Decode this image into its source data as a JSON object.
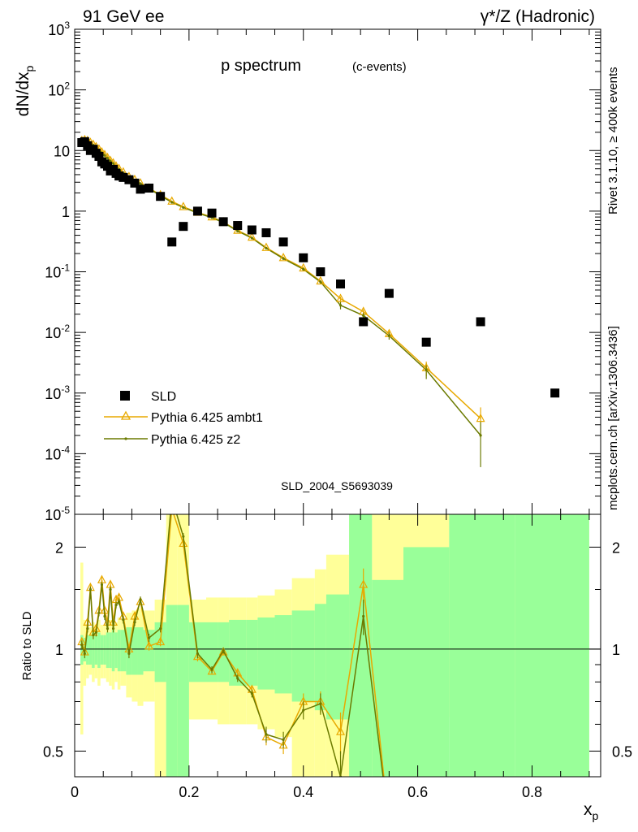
{
  "header": {
    "left": "91 GeV ee",
    "right": "γ*/Z (Hadronic)"
  },
  "side": {
    "rivet": "Rivet 3.1.10, ≥ 400k events",
    "mcplots": "mcplots.cern.ch [arXiv:1306.3436]"
  },
  "chart_data": [
    {
      "type": "scatter",
      "title": "p spectrum",
      "subtitle": "(c-events)",
      "ylabel": "dN/dx_p",
      "watermark": "SLD_2004_S5693039",
      "y_scale": "log",
      "ylim": [
        1e-05,
        1000
      ],
      "xlim": [
        0,
        0.92
      ],
      "y_tick_labels": [
        "10^-5",
        "10^-4",
        "10^-3",
        "10^-2",
        "10^-1",
        "1",
        "10",
        "10^2",
        "10^3"
      ],
      "legend": {
        "position": "bottom-left",
        "entries": [
          "SLD",
          "Pythia 6.425 ambt1",
          "Pythia 6.425 z2"
        ]
      },
      "colors": {
        "data": "#000000",
        "ambt1": "#e8a900",
        "z2": "#6b7a00"
      },
      "series": [
        {
          "name": "SLD",
          "marker": "filled-square",
          "x": [
            0.0125,
            0.0175,
            0.0225,
            0.0275,
            0.0325,
            0.0375,
            0.0425,
            0.0475,
            0.0525,
            0.0575,
            0.0625,
            0.0675,
            0.0725,
            0.0775,
            0.085,
            0.095,
            0.105,
            0.115,
            0.13,
            0.15,
            0.17,
            0.19,
            0.215,
            0.24,
            0.26,
            0.285,
            0.31,
            0.335,
            0.365,
            0.4,
            0.43,
            0.465,
            0.505,
            0.55,
            0.615,
            0.71,
            0.84
          ],
          "y": [
            13.5,
            14.0,
            12.0,
            10.0,
            10.5,
            9.0,
            8.0,
            6.5,
            6.0,
            5.5,
            4.6,
            4.9,
            4.2,
            3.8,
            3.6,
            3.3,
            2.9,
            2.3,
            2.4,
            1.75,
            0.31,
            0.56,
            1.0,
            0.93,
            0.67,
            0.58,
            0.49,
            0.44,
            0.31,
            0.17,
            0.1,
            0.063,
            0.015,
            0.044,
            0.0069,
            0.015,
            0.001
          ]
        },
        {
          "name": "Pythia 6.425 ambt1",
          "marker": "open-triangle",
          "x": [
            0.0125,
            0.0175,
            0.0225,
            0.0275,
            0.0325,
            0.0375,
            0.0425,
            0.0475,
            0.0525,
            0.0575,
            0.0625,
            0.0675,
            0.0725,
            0.0775,
            0.085,
            0.095,
            0.105,
            0.115,
            0.13,
            0.15,
            0.17,
            0.19,
            0.215,
            0.24,
            0.26,
            0.285,
            0.31,
            0.335,
            0.365,
            0.4,
            0.43,
            0.465,
            0.505,
            0.55,
            0.615,
            0.71
          ],
          "y": [
            14.5,
            15.0,
            14.5,
            13.5,
            12.5,
            11.5,
            10.5,
            9.4,
            8.5,
            7.6,
            6.8,
            6.2,
            5.5,
            5.0,
            4.4,
            3.7,
            3.3,
            2.9,
            2.4,
            1.85,
            1.45,
            1.18,
            0.95,
            0.8,
            0.66,
            0.48,
            0.37,
            0.25,
            0.17,
            0.115,
            0.07,
            0.036,
            0.022,
            0.0095,
            0.0026,
            0.00038
          ],
          "y_err": [
            0,
            0,
            0,
            0,
            0,
            0,
            0,
            0,
            0,
            0,
            0,
            0,
            0,
            0,
            0,
            0,
            0,
            0,
            0,
            0,
            0,
            0,
            0,
            0,
            0,
            0,
            0.01,
            0.01,
            0.008,
            0.006,
            0.004,
            0.003,
            0.002,
            0.0012,
            0.0007,
            0.0002
          ]
        },
        {
          "name": "Pythia 6.425 z2",
          "marker": "small-dot",
          "x": [
            0.0125,
            0.0175,
            0.0225,
            0.0275,
            0.0325,
            0.0375,
            0.0425,
            0.0475,
            0.0525,
            0.0575,
            0.0625,
            0.0675,
            0.0725,
            0.0775,
            0.085,
            0.095,
            0.105,
            0.115,
            0.13,
            0.15,
            0.17,
            0.19,
            0.215,
            0.24,
            0.26,
            0.285,
            0.31,
            0.335,
            0.365,
            0.4,
            0.43,
            0.465,
            0.505,
            0.55,
            0.615,
            0.71
          ],
          "y": [
            14.0,
            14.8,
            14.2,
            13.2,
            12.3,
            11.2,
            10.2,
            9.2,
            8.3,
            7.5,
            6.7,
            6.1,
            5.4,
            4.9,
            4.3,
            3.6,
            3.2,
            2.85,
            2.35,
            1.8,
            1.4,
            1.15,
            0.93,
            0.78,
            0.65,
            0.47,
            0.36,
            0.245,
            0.165,
            0.11,
            0.068,
            0.028,
            0.019,
            0.0088,
            0.0024,
            0.0002
          ],
          "y_err": [
            0,
            0,
            0,
            0,
            0,
            0,
            0,
            0,
            0,
            0,
            0,
            0,
            0,
            0,
            0,
            0,
            0,
            0,
            0,
            0,
            0,
            0,
            0,
            0,
            0,
            0,
            0.01,
            0.01,
            0.008,
            0.006,
            0.004,
            0.004,
            0.002,
            0.0012,
            0.0007,
            0.00014
          ]
        }
      ]
    },
    {
      "type": "line",
      "ylabel": "Ratio to SLD",
      "xlabel": "x_p",
      "y_scale": "log",
      "ylim": [
        0.42,
        2.5
      ],
      "xlim": [
        0,
        0.92
      ],
      "x_tick_labels": [
        "0",
        "0.2",
        "0.4",
        "0.6",
        "0.8"
      ],
      "y_tick_labels": [
        "0.5",
        "1",
        "2"
      ],
      "reference_line": 1,
      "bands": {
        "bins": [
          [
            0.01,
            0.015
          ],
          [
            0.015,
            0.02
          ],
          [
            0.02,
            0.025
          ],
          [
            0.025,
            0.03
          ],
          [
            0.03,
            0.035
          ],
          [
            0.035,
            0.04
          ],
          [
            0.04,
            0.045
          ],
          [
            0.045,
            0.05
          ],
          [
            0.05,
            0.055
          ],
          [
            0.055,
            0.06
          ],
          [
            0.06,
            0.065
          ],
          [
            0.065,
            0.07
          ],
          [
            0.07,
            0.075
          ],
          [
            0.075,
            0.08
          ],
          [
            0.08,
            0.09
          ],
          [
            0.09,
            0.1
          ],
          [
            0.1,
            0.11
          ],
          [
            0.11,
            0.12
          ],
          [
            0.12,
            0.14
          ],
          [
            0.14,
            0.16
          ],
          [
            0.16,
            0.18
          ],
          [
            0.18,
            0.2
          ],
          [
            0.2,
            0.23
          ],
          [
            0.23,
            0.25
          ],
          [
            0.25,
            0.27
          ],
          [
            0.27,
            0.3
          ],
          [
            0.3,
            0.32
          ],
          [
            0.32,
            0.35
          ],
          [
            0.35,
            0.38
          ],
          [
            0.38,
            0.42
          ],
          [
            0.42,
            0.44
          ],
          [
            0.44,
            0.48
          ],
          [
            0.48,
            0.52
          ],
          [
            0.52,
            0.575
          ],
          [
            0.575,
            0.655
          ],
          [
            0.655,
            0.77
          ],
          [
            0.77,
            0.9
          ]
        ],
        "inner_low": [
          0.9,
          0.92,
          0.9,
          0.9,
          0.88,
          0.9,
          0.88,
          0.9,
          0.9,
          0.88,
          0.88,
          0.86,
          0.88,
          0.86,
          0.86,
          0.84,
          0.84,
          0.84,
          0.86,
          0.8,
          0.42,
          0.42,
          0.8,
          0.8,
          0.8,
          0.78,
          0.78,
          0.76,
          0.74,
          0.7,
          0.66,
          0.62,
          0.42,
          0.42,
          0.42,
          0.42,
          0.42
        ],
        "inner_high": [
          1.1,
          1.08,
          1.1,
          1.1,
          1.12,
          1.1,
          1.12,
          1.1,
          1.1,
          1.12,
          1.12,
          1.14,
          1.12,
          1.14,
          1.14,
          1.16,
          1.16,
          1.16,
          1.14,
          1.2,
          1.35,
          1.35,
          1.2,
          1.2,
          1.2,
          1.22,
          1.22,
          1.24,
          1.26,
          1.3,
          1.36,
          1.45,
          2.5,
          1.6,
          2.0,
          2.5,
          2.5
        ],
        "outer_low": [
          0.56,
          0.78,
          0.82,
          0.84,
          0.8,
          0.82,
          0.78,
          0.82,
          0.82,
          0.8,
          0.78,
          0.76,
          0.8,
          0.76,
          0.78,
          0.72,
          0.7,
          0.68,
          0.7,
          0.42,
          0.42,
          0.42,
          0.62,
          0.62,
          0.6,
          0.6,
          0.6,
          0.58,
          0.55,
          0.42,
          0.42,
          0.42,
          0.42,
          0.42,
          0.63,
          0.7,
          0.42
        ],
        "outer_high": [
          1.8,
          1.22,
          1.18,
          1.16,
          1.2,
          1.18,
          1.22,
          1.18,
          1.18,
          1.2,
          1.22,
          1.24,
          1.2,
          1.24,
          1.22,
          1.28,
          1.3,
          1.32,
          1.3,
          1.4,
          2.5,
          2.5,
          1.4,
          1.42,
          1.42,
          1.42,
          1.42,
          1.44,
          1.5,
          1.62,
          1.72,
          1.9,
          2.5,
          2.5,
          2.5,
          1.72,
          2.5
        ]
      },
      "colors": {
        "inner": "#99ff99",
        "outer": "#ffff99"
      },
      "series": [
        {
          "name": "Pythia 6.425 ambt1",
          "x": [
            0.0125,
            0.0175,
            0.0225,
            0.0275,
            0.0325,
            0.0375,
            0.0425,
            0.0475,
            0.0525,
            0.0575,
            0.0625,
            0.0675,
            0.0725,
            0.0775,
            0.085,
            0.095,
            0.105,
            0.115,
            0.13,
            0.15,
            0.17,
            0.19,
            0.215,
            0.24,
            0.26,
            0.285,
            0.31,
            0.335,
            0.365,
            0.4,
            0.43,
            0.465,
            0.505,
            0.55
          ],
          "y": [
            1.05,
            0.98,
            1.2,
            1.52,
            1.12,
            1.15,
            1.3,
            1.6,
            1.3,
            1.2,
            1.55,
            1.2,
            1.4,
            1.42,
            1.25,
            1.0,
            1.25,
            1.38,
            1.02,
            1.05,
            2.6,
            2.05,
            0.95,
            0.86,
            0.98,
            0.85,
            0.76,
            0.55,
            0.52,
            0.7,
            0.7,
            0.57,
            1.55,
            0.3
          ],
          "y_err": [
            0.03,
            0.03,
            0.03,
            0.03,
            0.03,
            0.03,
            0.03,
            0.03,
            0.03,
            0.03,
            0.03,
            0.03,
            0.03,
            0.03,
            0.03,
            0.03,
            0.03,
            0.03,
            0.03,
            0.03,
            0.05,
            0.05,
            0.03,
            0.02,
            0.02,
            0.02,
            0.02,
            0.03,
            0.03,
            0.04,
            0.05,
            0.08,
            0.18,
            0.0
          ]
        },
        {
          "name": "Pythia 6.425 z2",
          "x": [
            0.0125,
            0.0175,
            0.0225,
            0.0275,
            0.0325,
            0.0375,
            0.0425,
            0.0475,
            0.0525,
            0.0575,
            0.0625,
            0.0675,
            0.0725,
            0.0775,
            0.085,
            0.095,
            0.105,
            0.115,
            0.13,
            0.15,
            0.17,
            0.19,
            0.215,
            0.24,
            0.26,
            0.285,
            0.31,
            0.335,
            0.365,
            0.4,
            0.43,
            0.465,
            0.505,
            0.55
          ],
          "y": [
            1.03,
            0.97,
            1.15,
            1.5,
            1.1,
            1.12,
            1.28,
            1.55,
            1.25,
            1.15,
            1.5,
            1.15,
            1.35,
            1.38,
            1.22,
            0.97,
            1.2,
            1.4,
            1.08,
            1.15,
            2.8,
            2.15,
            0.97,
            0.87,
            0.99,
            0.82,
            0.74,
            0.56,
            0.54,
            0.66,
            0.69,
            0.42,
            1.25,
            0.3
          ],
          "y_err": [
            0.03,
            0.03,
            0.03,
            0.03,
            0.03,
            0.03,
            0.03,
            0.03,
            0.03,
            0.03,
            0.03,
            0.03,
            0.03,
            0.03,
            0.03,
            0.03,
            0.03,
            0.03,
            0.03,
            0.03,
            0.05,
            0.05,
            0.03,
            0.02,
            0.02,
            0.02,
            0.02,
            0.03,
            0.03,
            0.04,
            0.05,
            0.08,
            0.15,
            0.0
          ]
        }
      ]
    }
  ]
}
